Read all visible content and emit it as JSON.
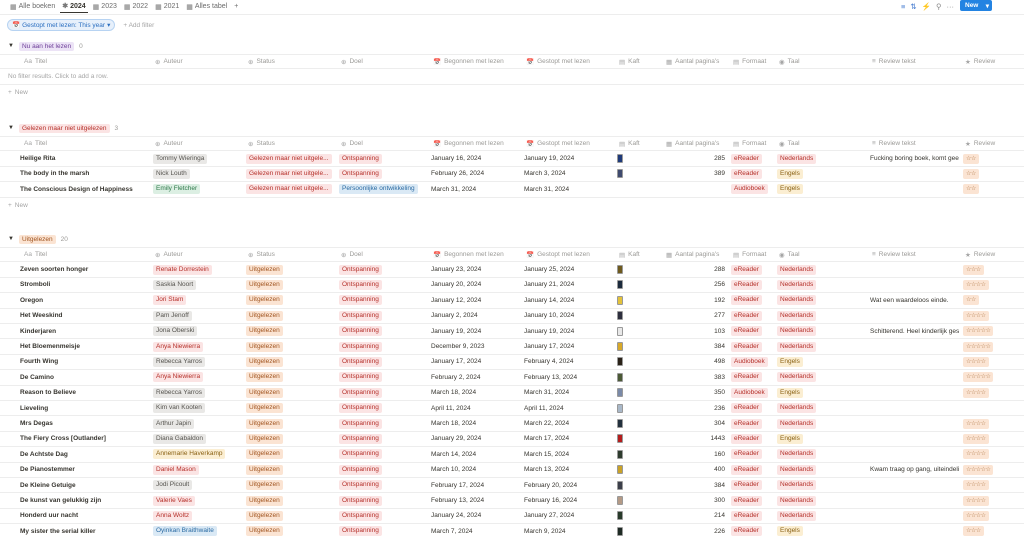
{
  "toolbar": {
    "tabs": [
      {
        "icon": "table-icon",
        "label": "Alle boeken",
        "active": false
      },
      {
        "icon": "asterisk-icon",
        "label": "2024",
        "active": true
      },
      {
        "icon": "table-icon",
        "label": "2023",
        "active": false
      },
      {
        "icon": "table-icon",
        "label": "2022",
        "active": false
      },
      {
        "icon": "table-icon",
        "label": "2021",
        "active": false
      },
      {
        "icon": "table-icon",
        "label": "Alles tabel",
        "active": false
      }
    ],
    "add_tab": "+",
    "new_label": "New",
    "icons": [
      "filter-icon",
      "sort-icon",
      "lightning-icon",
      "search-icon",
      "more-icon"
    ]
  },
  "filter": {
    "chip": "Gestopt met lezen: This year",
    "add_filter": "+ Add filter"
  },
  "columns": [
    "Titel",
    "Auteur",
    "Status",
    "Doel",
    "Begonnen met lezen",
    "Gestopt met lezen",
    "Kaft",
    "Aantal pagina's",
    "Formaat",
    "Taal",
    "Review tekst",
    "Review"
  ],
  "colors": {
    "red_bg": "#fbe4e4",
    "red_fg": "#b5302a",
    "grey_bg": "#e9e8e6",
    "grey_fg": "#55534e",
    "green_bg": "#dcefe3",
    "green_fg": "#2f7a4b",
    "blue_bg": "#dae9f5",
    "blue_fg": "#2b6ba3",
    "yellow_bg": "#fbeed2",
    "yellow_fg": "#8a6114",
    "orange_bg": "#fbe4d3",
    "orange_fg": "#a0541f",
    "purple_bg": "#ece3f6",
    "purple_fg": "#6d3d98"
  },
  "groups": [
    {
      "label": "Nu aan het lezen",
      "count": "0",
      "color": "purple",
      "empty_message": "No filter results. Click to add a row.",
      "new_label": "New",
      "rows": []
    },
    {
      "label": "Gelezen maar niet uitgelezen",
      "count": "3",
      "color": "red",
      "new_label": "New",
      "rows": [
        {
          "title": "Heilige Rita",
          "author": "Tommy Wieringa",
          "author_color": "grey",
          "status": "Gelezen maar niet uitgele...",
          "doel": "Ontspanning",
          "doel_color": "red",
          "start": "January 16, 2024",
          "end": "January 19, 2024",
          "cover": "#1f3a7a",
          "pages": "285",
          "format": "eReader",
          "taal": "Nederlands",
          "taal_color": "red",
          "review_text": "Fucking boring boek, komt gee",
          "stars": "☆☆"
        },
        {
          "title": "The body in the marsh",
          "author": "Nick Louth",
          "author_color": "grey",
          "status": "Gelezen maar niet uitgele...",
          "doel": "Ontspanning",
          "doel_color": "red",
          "start": "February 26, 2024",
          "end": "March 3, 2024",
          "cover": "#3f4b6e",
          "pages": "389",
          "format": "eReader",
          "taal": "Engels",
          "taal_color": "yellow",
          "review_text": "",
          "stars": "☆☆"
        },
        {
          "title": "The Conscious Design of Happiness",
          "author": "Emily Fletcher",
          "author_color": "green",
          "status": "Gelezen maar niet uitgele...",
          "doel": "Persoonlijke ontwikkeling",
          "doel_color": "blue",
          "start": "March 31, 2024",
          "end": "March 31, 2024",
          "cover": "",
          "pages": "",
          "format": "Audioboek",
          "taal": "Engels",
          "taal_color": "yellow",
          "review_text": "",
          "stars": "☆☆"
        }
      ]
    },
    {
      "label": "Uitgelezen",
      "count": "20",
      "color": "orange",
      "rows": [
        {
          "title": "Zeven soorten honger",
          "author": "Renate Dorrestein",
          "author_color": "red",
          "status": "Uitgelezen",
          "doel": "Ontspanning",
          "doel_color": "red",
          "start": "January 23, 2024",
          "end": "January 25, 2024",
          "cover": "#6e5a1e",
          "pages": "288",
          "format": "eReader",
          "taal": "Nederlands",
          "taal_color": "red",
          "review_text": "",
          "stars": "☆☆☆"
        },
        {
          "title": "Stromboli",
          "author": "Saskia Noort",
          "author_color": "grey",
          "status": "Uitgelezen",
          "doel": "Ontspanning",
          "doel_color": "red",
          "start": "January 20, 2024",
          "end": "January 21, 2024",
          "cover": "#1b2a3c",
          "pages": "256",
          "format": "eReader",
          "taal": "Nederlands",
          "taal_color": "red",
          "review_text": "",
          "stars": "☆☆☆☆"
        },
        {
          "title": "Oregon",
          "author": "Jori Stam",
          "author_color": "red",
          "status": "Uitgelezen",
          "doel": "Ontspanning",
          "doel_color": "red",
          "start": "January 12, 2024",
          "end": "January 14, 2024",
          "cover": "#e3c23a",
          "pages": "192",
          "format": "eReader",
          "taal": "Nederlands",
          "taal_color": "red",
          "review_text": "Wat een waardeloos einde.",
          "stars": "☆☆"
        },
        {
          "title": "Het Weeskind",
          "author": "Pam Jenoff",
          "author_color": "grey",
          "status": "Uitgelezen",
          "doel": "Ontspanning",
          "doel_color": "red",
          "start": "January 2, 2024",
          "end": "January 10, 2024",
          "cover": "#2d2f3d",
          "pages": "277",
          "format": "eReader",
          "taal": "Nederlands",
          "taal_color": "red",
          "review_text": "",
          "stars": "☆☆☆☆"
        },
        {
          "title": "Kinderjaren",
          "author": "Jona Oberski",
          "author_color": "grey",
          "status": "Uitgelezen",
          "doel": "Ontspanning",
          "doel_color": "red",
          "start": "January 19, 2024",
          "end": "January 19, 2024",
          "cover": "#e8e8e8",
          "pages": "103",
          "format": "eReader",
          "taal": "Nederlands",
          "taal_color": "red",
          "review_text": "Schitterend. Heel kinderlijk ges",
          "stars": "☆☆☆☆☆"
        },
        {
          "title": "Het Bloemenmeisje",
          "author": "Anya Niewierra",
          "author_color": "red",
          "status": "Uitgelezen",
          "doel": "Ontspanning",
          "doel_color": "red",
          "start": "December 9, 2023",
          "end": "January 17, 2024",
          "cover": "#d8a92a",
          "pages": "384",
          "format": "eReader",
          "taal": "Nederlands",
          "taal_color": "red",
          "review_text": "",
          "stars": "☆☆☆☆☆"
        },
        {
          "title": "Fourth Wing",
          "author": "Rebecca Yarros",
          "author_color": "grey",
          "status": "Uitgelezen",
          "doel": "Ontspanning",
          "doel_color": "red",
          "start": "January 17, 2024",
          "end": "February 4, 2024",
          "cover": "#2a2218",
          "pages": "498",
          "format": "Audioboek",
          "taal": "Engels",
          "taal_color": "yellow",
          "review_text": "",
          "stars": "☆☆☆☆"
        },
        {
          "title": "De Camino",
          "author": "Anya Niewierra",
          "author_color": "red",
          "status": "Uitgelezen",
          "doel": "Ontspanning",
          "doel_color": "red",
          "start": "February 2, 2024",
          "end": "February 13, 2024",
          "cover": "#4b5a36",
          "pages": "383",
          "format": "eReader",
          "taal": "Nederlands",
          "taal_color": "red",
          "review_text": "",
          "stars": "☆☆☆☆☆"
        },
        {
          "title": "Reason to Believe",
          "author": "Rebecca Yarros",
          "author_color": "grey",
          "status": "Uitgelezen",
          "doel": "Ontspanning",
          "doel_color": "red",
          "start": "March 18, 2024",
          "end": "March 31, 2024",
          "cover": "#7a8aa8",
          "pages": "350",
          "format": "Audioboek",
          "taal": "Engels",
          "taal_color": "yellow",
          "review_text": "",
          "stars": "☆☆☆☆"
        },
        {
          "title": "Lieveling",
          "author": "Kim van Kooten",
          "author_color": "grey",
          "status": "Uitgelezen",
          "doel": "Ontspanning",
          "doel_color": "red",
          "start": "April 11, 2024",
          "end": "April 11, 2024",
          "cover": "#a9b8c8",
          "pages": "236",
          "format": "eReader",
          "taal": "Nederlands",
          "taal_color": "red",
          "review_text": "",
          "stars": ""
        },
        {
          "title": "Mrs Degas",
          "author": "Arthur Japin",
          "author_color": "grey",
          "status": "Uitgelezen",
          "doel": "Ontspanning",
          "doel_color": "red",
          "start": "March 18, 2024",
          "end": "March 22, 2024",
          "cover": "#23303d",
          "pages": "304",
          "format": "eReader",
          "taal": "Nederlands",
          "taal_color": "red",
          "review_text": "",
          "stars": "☆☆☆☆"
        },
        {
          "title": "The Fiery Cross [Outlander]",
          "author": "Diana Gabaldon",
          "author_color": "grey",
          "status": "Uitgelezen",
          "doel": "Ontspanning",
          "doel_color": "red",
          "start": "January 29, 2024",
          "end": "March 17, 2024",
          "cover": "#b51d1d",
          "pages": "1443",
          "format": "eReader",
          "taal": "Engels",
          "taal_color": "yellow",
          "review_text": "",
          "stars": "☆☆☆☆"
        },
        {
          "title": "De Achtste Dag",
          "author": "Annemarie Haverkamp",
          "author_color": "yellow",
          "status": "Uitgelezen",
          "doel": "Ontspanning",
          "doel_color": "red",
          "start": "March 14, 2024",
          "end": "March 15, 2024",
          "cover": "#2e3b2e",
          "pages": "160",
          "format": "eReader",
          "taal": "Nederlands",
          "taal_color": "red",
          "review_text": "",
          "stars": "☆☆☆☆"
        },
        {
          "title": "De Pianostemmer",
          "author": "Daniel Mason",
          "author_color": "red",
          "status": "Uitgelezen",
          "doel": "Ontspanning",
          "doel_color": "red",
          "start": "March 10, 2024",
          "end": "March 13, 2024",
          "cover": "#c9a227",
          "pages": "400",
          "format": "eReader",
          "taal": "Nederlands",
          "taal_color": "red",
          "review_text": "Kwam traag op gang, uiteindeli",
          "stars": "☆☆☆☆☆"
        },
        {
          "title": "De Kleine Getuige",
          "author": "Jodi Picoult",
          "author_color": "grey",
          "status": "Uitgelezen",
          "doel": "Ontspanning",
          "doel_color": "red",
          "start": "February 17, 2024",
          "end": "February 20, 2024",
          "cover": "#3b3f4a",
          "pages": "384",
          "format": "eReader",
          "taal": "Nederlands",
          "taal_color": "red",
          "review_text": "",
          "stars": "☆☆☆☆"
        },
        {
          "title": "De kunst van gelukkig zijn",
          "author": "Valerie Vaes",
          "author_color": "red",
          "status": "Uitgelezen",
          "doel": "Ontspanning",
          "doel_color": "red",
          "start": "February 13, 2024",
          "end": "February 16, 2024",
          "cover": "#b49a86",
          "pages": "300",
          "format": "eReader",
          "taal": "Nederlands",
          "taal_color": "red",
          "review_text": "",
          "stars": "☆☆☆☆"
        },
        {
          "title": "Honderd uur nacht",
          "author": "Anna Woltz",
          "author_color": "red",
          "status": "Uitgelezen",
          "doel": "Ontspanning",
          "doel_color": "red",
          "start": "January 24, 2024",
          "end": "January 27, 2024",
          "cover": "#283a2a",
          "pages": "214",
          "format": "eReader",
          "taal": "Nederlands",
          "taal_color": "red",
          "review_text": "",
          "stars": "☆☆☆☆"
        },
        {
          "title": "My sister the serial killer",
          "author": "Oyinkan Braithwaite",
          "author_color": "blue",
          "status": "Uitgelezen",
          "doel": "Ontspanning",
          "doel_color": "red",
          "start": "March 7, 2024",
          "end": "March 9, 2024",
          "cover": "#1e2a24",
          "pages": "226",
          "format": "eReader",
          "taal": "Engels",
          "taal_color": "yellow",
          "review_text": "",
          "stars": "☆☆☆"
        }
      ]
    }
  ]
}
